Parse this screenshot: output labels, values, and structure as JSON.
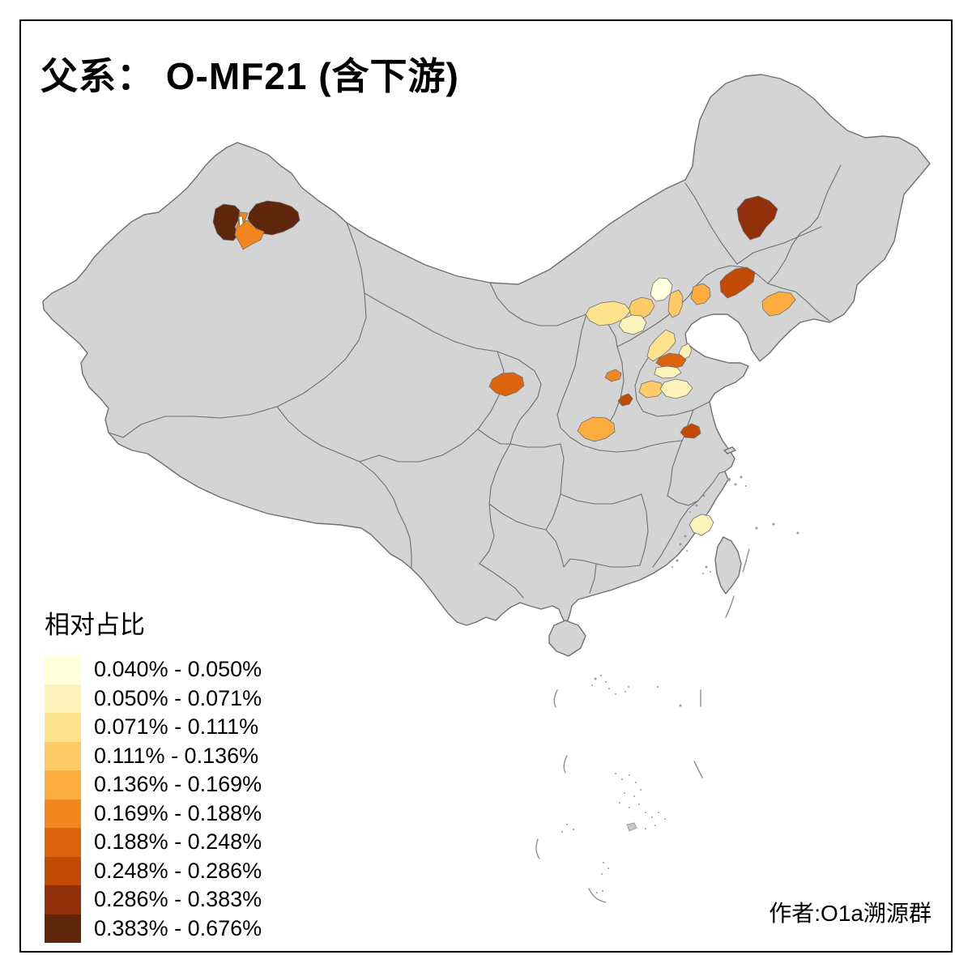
{
  "title": "父系： O-MF21 (含下游)",
  "attribution": "作者:O1a溯源群",
  "legend": {
    "title": "相对占比",
    "classes": [
      {
        "label": "0.040% - 0.050%",
        "color": "#FFFFDB"
      },
      {
        "label": "0.050% - 0.071%",
        "color": "#FCF3BA"
      },
      {
        "label": "0.071% - 0.111%",
        "color": "#FDE38C"
      },
      {
        "label": "0.111% - 0.136%",
        "color": "#FDCB67"
      },
      {
        "label": "0.136% - 0.169%",
        "color": "#FDAC3F"
      },
      {
        "label": "0.169% - 0.188%",
        "color": "#F2871F"
      },
      {
        "label": "0.188% - 0.248%",
        "color": "#DC640E"
      },
      {
        "label": "0.248% - 0.286%",
        "color": "#C14B04"
      },
      {
        "label": "0.286% - 0.383%",
        "color": "#93300C"
      },
      {
        "label": "0.383% - 0.676%",
        "color": "#5E260B"
      }
    ]
  },
  "map": {
    "base_fill": "#D4D4D4",
    "border_color": "#6F6F6F",
    "sea_color": "#FFFFFF",
    "regions": [
      {
        "id": "xinjiang-tacheng",
        "class": 10
      },
      {
        "id": "xinjiang-altay",
        "class": 10
      },
      {
        "id": "xinjiang-yili",
        "class": 6
      },
      {
        "id": "xinjiang-karamay",
        "class": 1
      },
      {
        "id": "heilongjiang-qiqihar",
        "class": 9
      },
      {
        "id": "liaoning-chaoyang-fuxin",
        "class": 8
      },
      {
        "id": "liaoning-dandong",
        "class": 5
      },
      {
        "id": "hebei-qinhuangdao-coast",
        "class": 5
      },
      {
        "id": "beijing",
        "class": 1
      },
      {
        "id": "hebei-zhangjiakou",
        "class": 4
      },
      {
        "id": "shanxi-datong-band",
        "class": 3
      },
      {
        "id": "tianjin",
        "class": 4
      },
      {
        "id": "hebei-baoding",
        "class": 2
      },
      {
        "id": "hebei-cangzhou-band",
        "class": 3
      },
      {
        "id": "shandong-binzhou",
        "class": 2
      },
      {
        "id": "shandong-jinan",
        "class": 7
      },
      {
        "id": "shandong-taian",
        "class": 2
      },
      {
        "id": "shandong-jining",
        "class": 4
      },
      {
        "id": "shandong-linyi",
        "class": 2
      },
      {
        "id": "henan-zhengzhou",
        "class": 6
      },
      {
        "id": "henan-luohe",
        "class": 8
      },
      {
        "id": "henan-nanyang",
        "class": 5
      },
      {
        "id": "shaanxi-xian-baoji",
        "class": 7
      },
      {
        "id": "anhui-bengbu",
        "class": 8
      },
      {
        "id": "fujian-fuzhou-putian",
        "class": 2
      }
    ]
  }
}
